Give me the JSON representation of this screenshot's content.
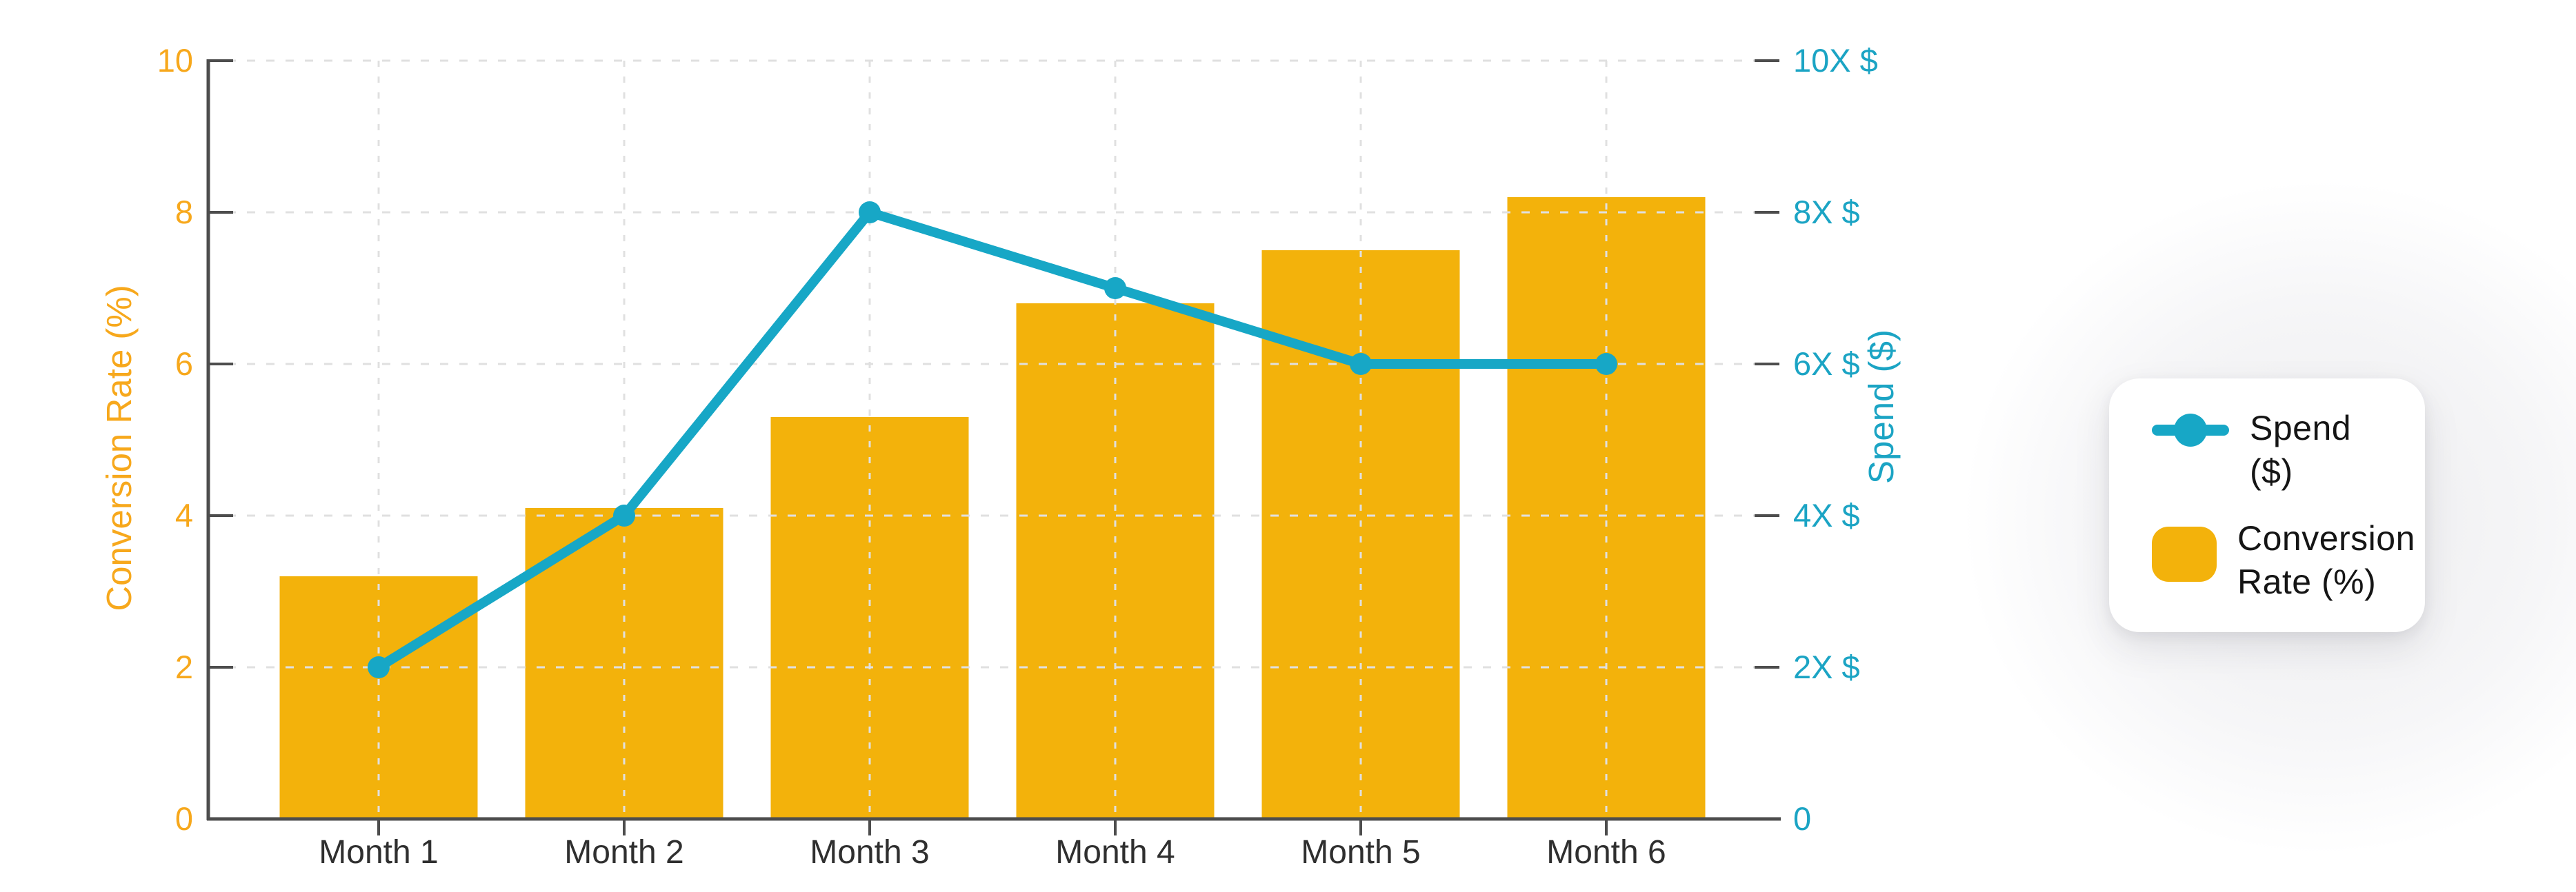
{
  "chart_data": {
    "type": "mixed",
    "categories": [
      "Month 1",
      "Month 2",
      "Month 3",
      "Month 4",
      "Month 5",
      "Month 6"
    ],
    "series": [
      {
        "name": "Conversion Rate (%)",
        "type": "bar",
        "axis": "left",
        "values": [
          3.2,
          4.1,
          5.3,
          6.8,
          7.5,
          8.2
        ]
      },
      {
        "name": "Spend ($)",
        "type": "line",
        "axis": "right",
        "values": [
          2,
          4,
          8,
          7,
          6,
          6
        ],
        "unit_suffix": "X $"
      }
    ],
    "left_axis": {
      "label": "Conversion Rate (%)",
      "range": [
        0,
        10
      ],
      "tick_step": 2,
      "tick_labels": [
        "0",
        "2",
        "4",
        "6",
        "8",
        "10"
      ]
    },
    "right_axis": {
      "label": "Spend ($)",
      "range": [
        0,
        10
      ],
      "tick_step": 2,
      "tick_labels": [
        "0",
        "2X $",
        "4X $",
        "6X $",
        "8X $",
        "10X $"
      ]
    },
    "x_axis": {
      "tick_labels": [
        "Month 1",
        "Month 2",
        "Month 3",
        "Month 4",
        "Month 5",
        "Month 6"
      ]
    },
    "grid": {
      "horizontal": "dashed",
      "vertical": "dashed"
    },
    "legend": {
      "position": "right",
      "items": [
        {
          "label": "Spend ($)",
          "marker": "line-dot"
        },
        {
          "label": "Conversion Rate (%)",
          "marker": "rounded-square"
        }
      ]
    }
  },
  "colors": {
    "bar": "#F3B20B",
    "orange_text": "#F7A81C",
    "teal": "#17A7C6",
    "teal_text": "#1BA4C4",
    "grid": "#E0E0E0",
    "spine": "#4D4D4D",
    "x_label": "#2F2F2F",
    "legend_text": "#151515",
    "card_bg": "#FFFFFF"
  }
}
